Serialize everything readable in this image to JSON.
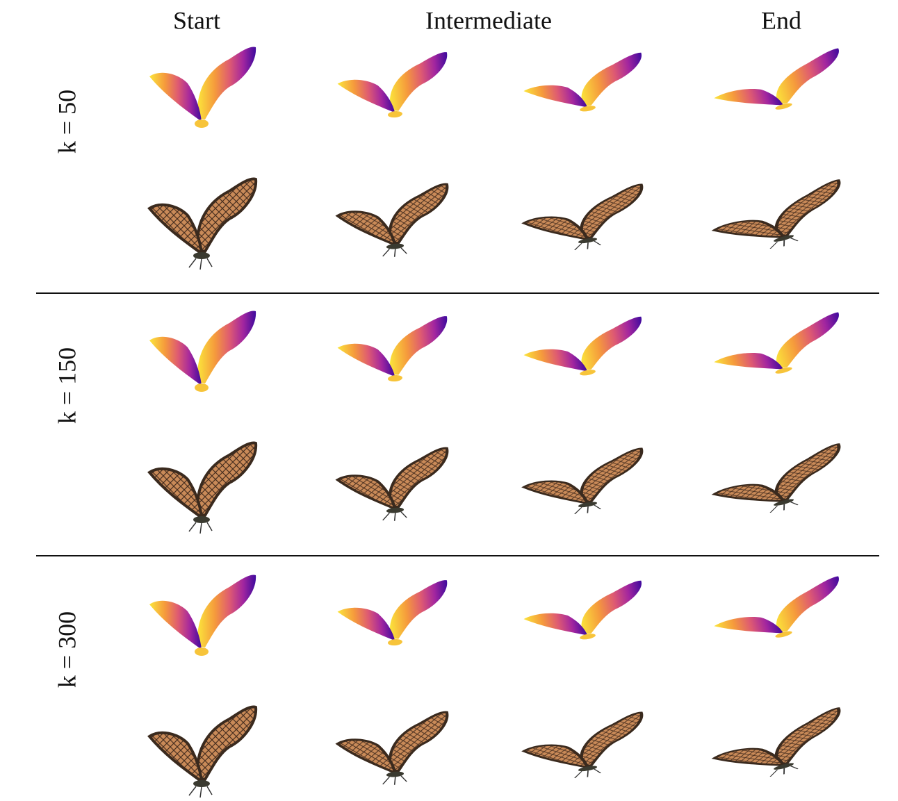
{
  "header": {
    "columns": [
      "Start",
      "Intermediate",
      "End"
    ]
  },
  "rows": [
    {
      "label": "k = 50"
    },
    {
      "label": "k = 150"
    },
    {
      "label": "k = 300"
    }
  ]
}
